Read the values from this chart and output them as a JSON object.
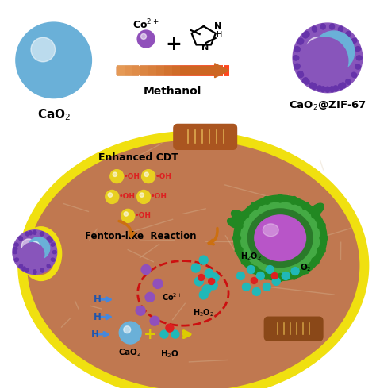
{
  "bg_color": "#ffffff",
  "cell_yellow": "#f0e010",
  "cell_brown": "#c07850",
  "cao2_blue": "#6ab0d8",
  "cao2_blue_light": "#8ac8e8",
  "zif_purple": "#8855bb",
  "zif_purple_dark": "#6633aa",
  "nucleus_purple": "#b855c8",
  "nucleus_green_outer": "#2a8a2a",
  "nucleus_green_inner": "#44bb44",
  "mito_brown": "#996020",
  "mito_stripe": "#cc9040",
  "oh_yellow": "#e8d020",
  "oh_red": "#dd2020",
  "co_purple": "#9050bb",
  "teal": "#20b8b8",
  "red_dot": "#dd2020",
  "dashed_red": "#cc1010",
  "arrow_orange": "#cc7010",
  "arrow_yellow": "#ddcc00",
  "h_blue": "#2255aa",
  "h_arrow_blue": "#4488dd",
  "fiber_color": "#ddc8a8",
  "cao2_label": "CaO$_2$",
  "product_label": "CaO$_2$@ZIF-67",
  "co2_ion_label": "Co$^{2+}$",
  "methanol_label": "Methanol",
  "enhanced_cdt": "Enhanced CDT",
  "fenton_like": "Fenton-like  Reaction",
  "oh_label": "•OH",
  "co_label": "Co$^{2+}$",
  "h2o2_label": "H$_2$O$_2$",
  "h2o_label": "H$_2$O",
  "o2_label": "O$_2$",
  "cao2_small_label": "CaO$_2$"
}
